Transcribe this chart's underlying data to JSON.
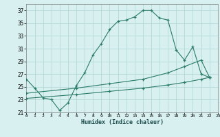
{
  "line1_x": [
    0,
    1,
    2,
    3,
    4,
    5,
    6,
    7,
    8,
    9,
    10,
    11,
    12,
    13,
    14,
    15,
    16,
    17,
    18,
    19,
    20,
    21,
    22
  ],
  "line1_y": [
    26.2,
    24.8,
    23.3,
    23.0,
    21.3,
    22.5,
    25.2,
    27.2,
    30.0,
    31.8,
    34.0,
    35.3,
    35.5,
    36.0,
    37.0,
    37.0,
    35.8,
    35.5,
    30.8,
    29.2,
    31.3,
    27.0,
    26.5
  ],
  "line2_x": [
    0,
    6,
    10,
    14,
    17,
    19,
    21,
    22
  ],
  "line2_y": [
    24.0,
    24.8,
    25.5,
    26.2,
    27.2,
    28.2,
    29.2,
    26.5
  ],
  "line3_x": [
    0,
    6,
    10,
    14,
    17,
    19,
    21,
    22
  ],
  "line3_y": [
    23.2,
    23.8,
    24.3,
    24.8,
    25.3,
    25.7,
    26.2,
    26.5
  ],
  "line_color": "#2a7a6a",
  "bg_color": "#d8f0f0",
  "grid_color": "#aed4d4",
  "xlabel": "Humidex (Indice chaleur)",
  "yticks": [
    21,
    23,
    25,
    27,
    29,
    31,
    33,
    35,
    37
  ],
  "xticks": [
    0,
    1,
    2,
    3,
    4,
    5,
    6,
    7,
    8,
    9,
    10,
    11,
    12,
    13,
    14,
    15,
    16,
    17,
    18,
    19,
    20,
    21,
    22,
    23
  ],
  "xlim": [
    0,
    23
  ],
  "ylim": [
    21,
    38
  ]
}
